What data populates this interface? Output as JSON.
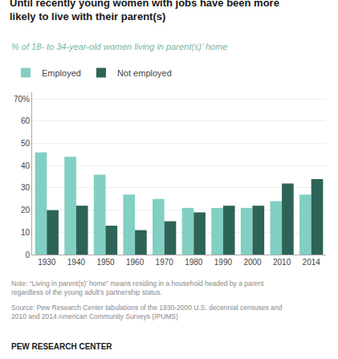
{
  "chart_data": {
    "type": "bar",
    "title": "Until recently young women with jobs have been more\nlikely to live with their parent(s)",
    "subtitle": "% of 18- to 34-year-old women living in parent(s)’ home",
    "categories": [
      "1930",
      "1940",
      "1950",
      "1960",
      "1970",
      "1980",
      "1990",
      "2000",
      "2010",
      "2014"
    ],
    "series": [
      {
        "name": "Employed",
        "color": "#82cfc3",
        "values": [
          46,
          44,
          36,
          27,
          25,
          21,
          21,
          21,
          24,
          27
        ]
      },
      {
        "name": "Not employed",
        "color": "#2d6457",
        "values": [
          20,
          22,
          13,
          11,
          15,
          19,
          22,
          22,
          32,
          34
        ]
      }
    ],
    "ylim": [
      0,
      73
    ],
    "yticks": [
      0,
      10,
      20,
      30,
      40,
      50,
      60,
      {
        "value": 70,
        "label": "70%"
      }
    ],
    "grid": true,
    "legend": "top",
    "annotations": [
      "Note: “Living in parent(s)’ home” means residing in a household headed by a parent\nregardless of the young adult’s partnership status.",
      "Source: Pew Research Center tabulations of the 1930-2000 U.S. decennial censuses and\n2010 and 2014 American Community Surveys (IPUMS)",
      "PEW RESEARCH CENTER"
    ]
  }
}
